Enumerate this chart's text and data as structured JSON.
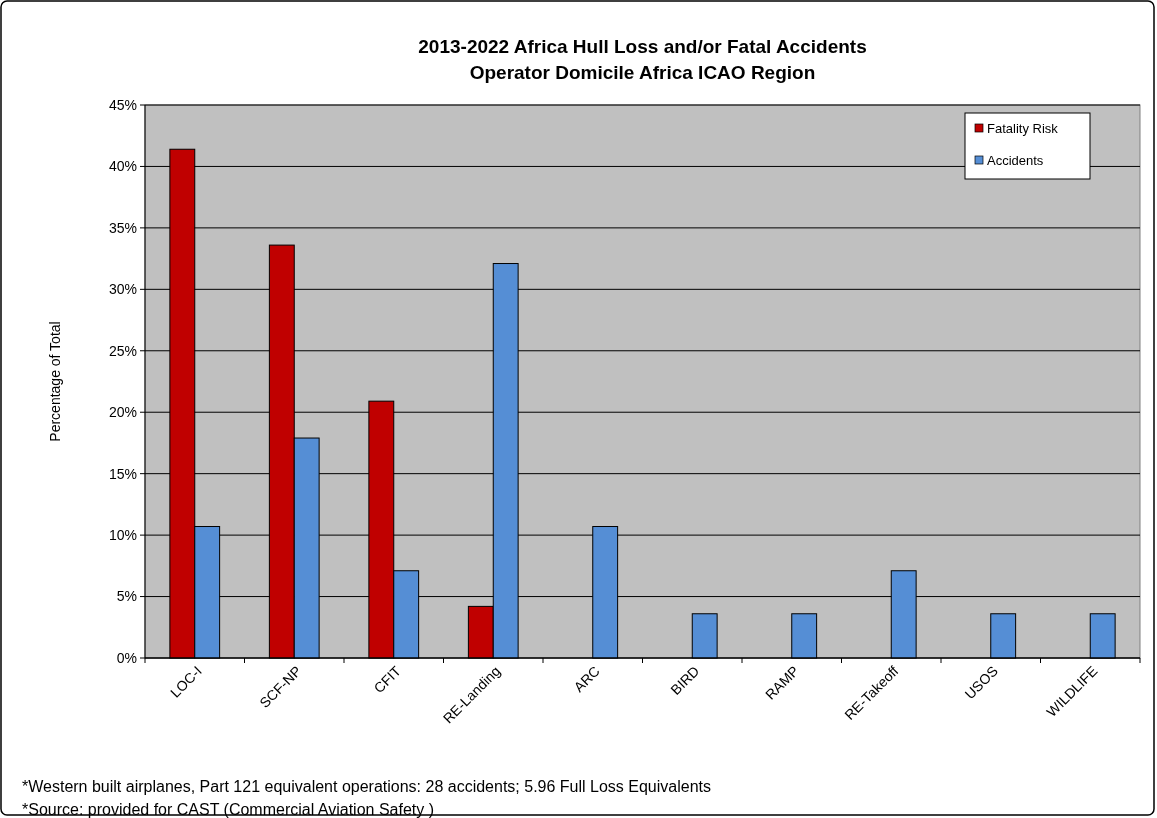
{
  "chart_data": {
    "type": "bar",
    "title": "2013-2022 Africa Hull Loss and/or Fatal Accidents\nOperator Domicile Africa ICAO Region",
    "ylabel": "Percentage of Total",
    "categories": [
      "LOC-I",
      "SCF-NP",
      "CFIT",
      "RE-Landing",
      "ARC",
      "BIRD",
      "RAMP",
      "RE-Takeoff",
      "USOS",
      "WILDLIFE"
    ],
    "series": [
      {
        "name": "Fatality Risk",
        "color": "#c00000",
        "values": [
          41.4,
          33.6,
          20.9,
          4.2,
          0,
          0,
          0,
          0,
          0,
          0
        ]
      },
      {
        "name": "Accidents",
        "color": "#558ed5",
        "values": [
          10.7,
          17.9,
          7.1,
          32.1,
          10.7,
          3.6,
          3.6,
          7.1,
          3.6,
          3.6
        ]
      }
    ],
    "ylim": [
      0,
      45
    ],
    "yticks": [
      {
        "value": 0,
        "label": "0%"
      },
      {
        "value": 5,
        "label": "5%"
      },
      {
        "value": 10,
        "label": "10%"
      },
      {
        "value": 15,
        "label": "15%"
      },
      {
        "value": 20,
        "label": "20%"
      },
      {
        "value": 25,
        "label": "25%"
      },
      {
        "value": 30,
        "label": "30%"
      },
      {
        "value": 35,
        "label": "35%"
      },
      {
        "value": 40,
        "label": "40%"
      },
      {
        "value": 45,
        "label": "45%"
      }
    ],
    "grid": "y",
    "legend": "top right",
    "annotations": [
      "*Western built airplanes, Part 121 equivalent  operations: 28 accidents; 5.96 Full Loss Equivalents",
      "*Source: provided for CAST (Commercial Aviation Safety )"
    ]
  }
}
